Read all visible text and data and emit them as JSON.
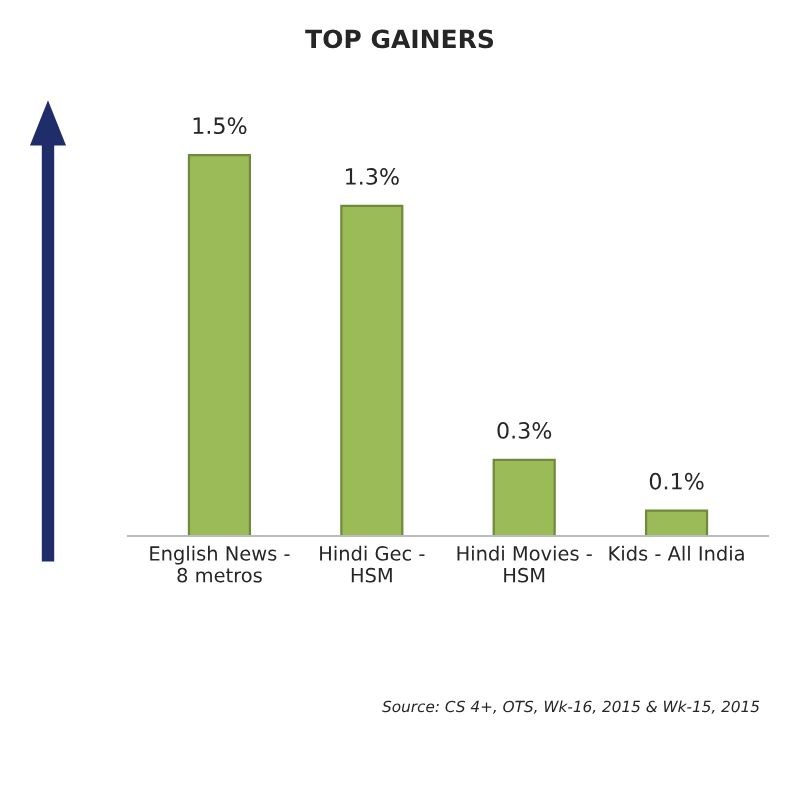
{
  "chart_data": {
    "type": "bar",
    "title": "TOP GAINERS",
    "categories": [
      "English News -\n8 metros",
      "Hindi Gec -\nHSM",
      "Hindi Movies -\nHSM",
      "Kids - All India"
    ],
    "values": [
      1.5,
      1.3,
      0.3,
      0.1
    ],
    "value_labels": [
      "1.5%",
      "1.3%",
      "0.3%",
      "0.1%"
    ],
    "color": "#9bbb59",
    "annotations": [
      "Source: CS 4+, OTS, Wk-16, 2015 & Wk-15, 2015"
    ],
    "grid": false,
    "legend": false,
    "tick_labels": "x"
  }
}
